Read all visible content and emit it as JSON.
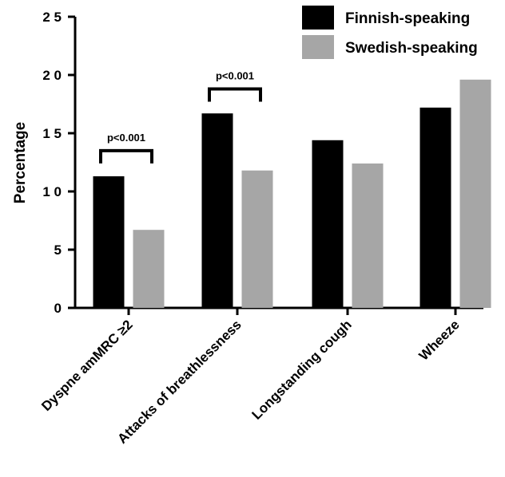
{
  "chart_data": {
    "type": "bar",
    "title": "",
    "xlabel": "",
    "ylabel": "Percentage",
    "ylim": [
      0,
      25
    ],
    "yticks": [
      "0",
      "5",
      "1 0",
      "1 5",
      "2 0",
      "2 5"
    ],
    "categories": [
      "Dyspne amMRC ≥2",
      "Attacks of breathlessness",
      "Longstanding cough",
      "Wheeze"
    ],
    "series": [
      {
        "name": "Finnish-speaking",
        "color": "#000000",
        "values": [
          11.3,
          16.7,
          14.4,
          17.2
        ]
      },
      {
        "name": "Swedish-speaking",
        "color": "#a6a6a6",
        "values": [
          6.7,
          11.8,
          12.4,
          19.6
        ]
      }
    ],
    "legend_position": "top-right",
    "grid": false,
    "annotations": [
      {
        "category_index": 0,
        "text": "p<0.001",
        "bracket_y": 13.5
      },
      {
        "category_index": 1,
        "text": "p<0.001",
        "bracket_y": 18.8
      }
    ]
  }
}
